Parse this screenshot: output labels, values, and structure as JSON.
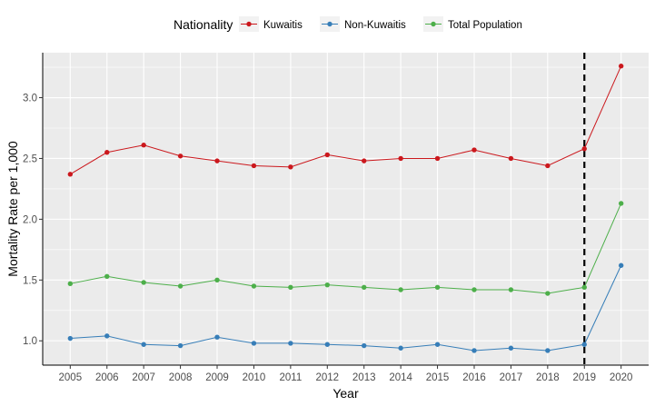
{
  "chart_data": {
    "type": "line",
    "title": "",
    "xlabel": "Year",
    "ylabel": "Mortality Rate per 1,000",
    "x": [
      2005,
      2006,
      2007,
      2008,
      2009,
      2010,
      2011,
      2012,
      2013,
      2014,
      2015,
      2016,
      2017,
      2018,
      2019,
      2020
    ],
    "xlim": [
      2004.25,
      2020.75
    ],
    "ylim": [
      0.8,
      3.37
    ],
    "yticks": [
      1.0,
      1.5,
      2.0,
      2.5,
      3.0
    ],
    "ytick_labels": [
      "1.0",
      "1.5",
      "2.0",
      "2.5",
      "3.0"
    ],
    "grid": true,
    "legend": {
      "title": "Nationality",
      "position": "top"
    },
    "series": [
      {
        "name": "Kuwaitis",
        "color": "#CB181D",
        "values": [
          2.37,
          2.55,
          2.61,
          2.52,
          2.48,
          2.44,
          2.43,
          2.53,
          2.48,
          2.5,
          2.5,
          2.57,
          2.5,
          2.44,
          2.58,
          3.26
        ]
      },
      {
        "name": "Non-Kuwaitis",
        "color": "#377EB8",
        "values": [
          1.02,
          1.04,
          0.97,
          0.96,
          1.03,
          0.98,
          0.98,
          0.97,
          0.96,
          0.94,
          0.97,
          0.92,
          0.94,
          0.92,
          0.97,
          1.62
        ]
      },
      {
        "name": "Total Population",
        "color": "#4DAF4A",
        "values": [
          1.47,
          1.53,
          1.48,
          1.45,
          1.5,
          1.45,
          1.44,
          1.46,
          1.44,
          1.42,
          1.44,
          1.42,
          1.42,
          1.39,
          1.44,
          2.13
        ]
      }
    ],
    "annotations": [
      {
        "type": "vline",
        "x": 2019,
        "style": "dashed",
        "color": "#000000"
      }
    ]
  }
}
